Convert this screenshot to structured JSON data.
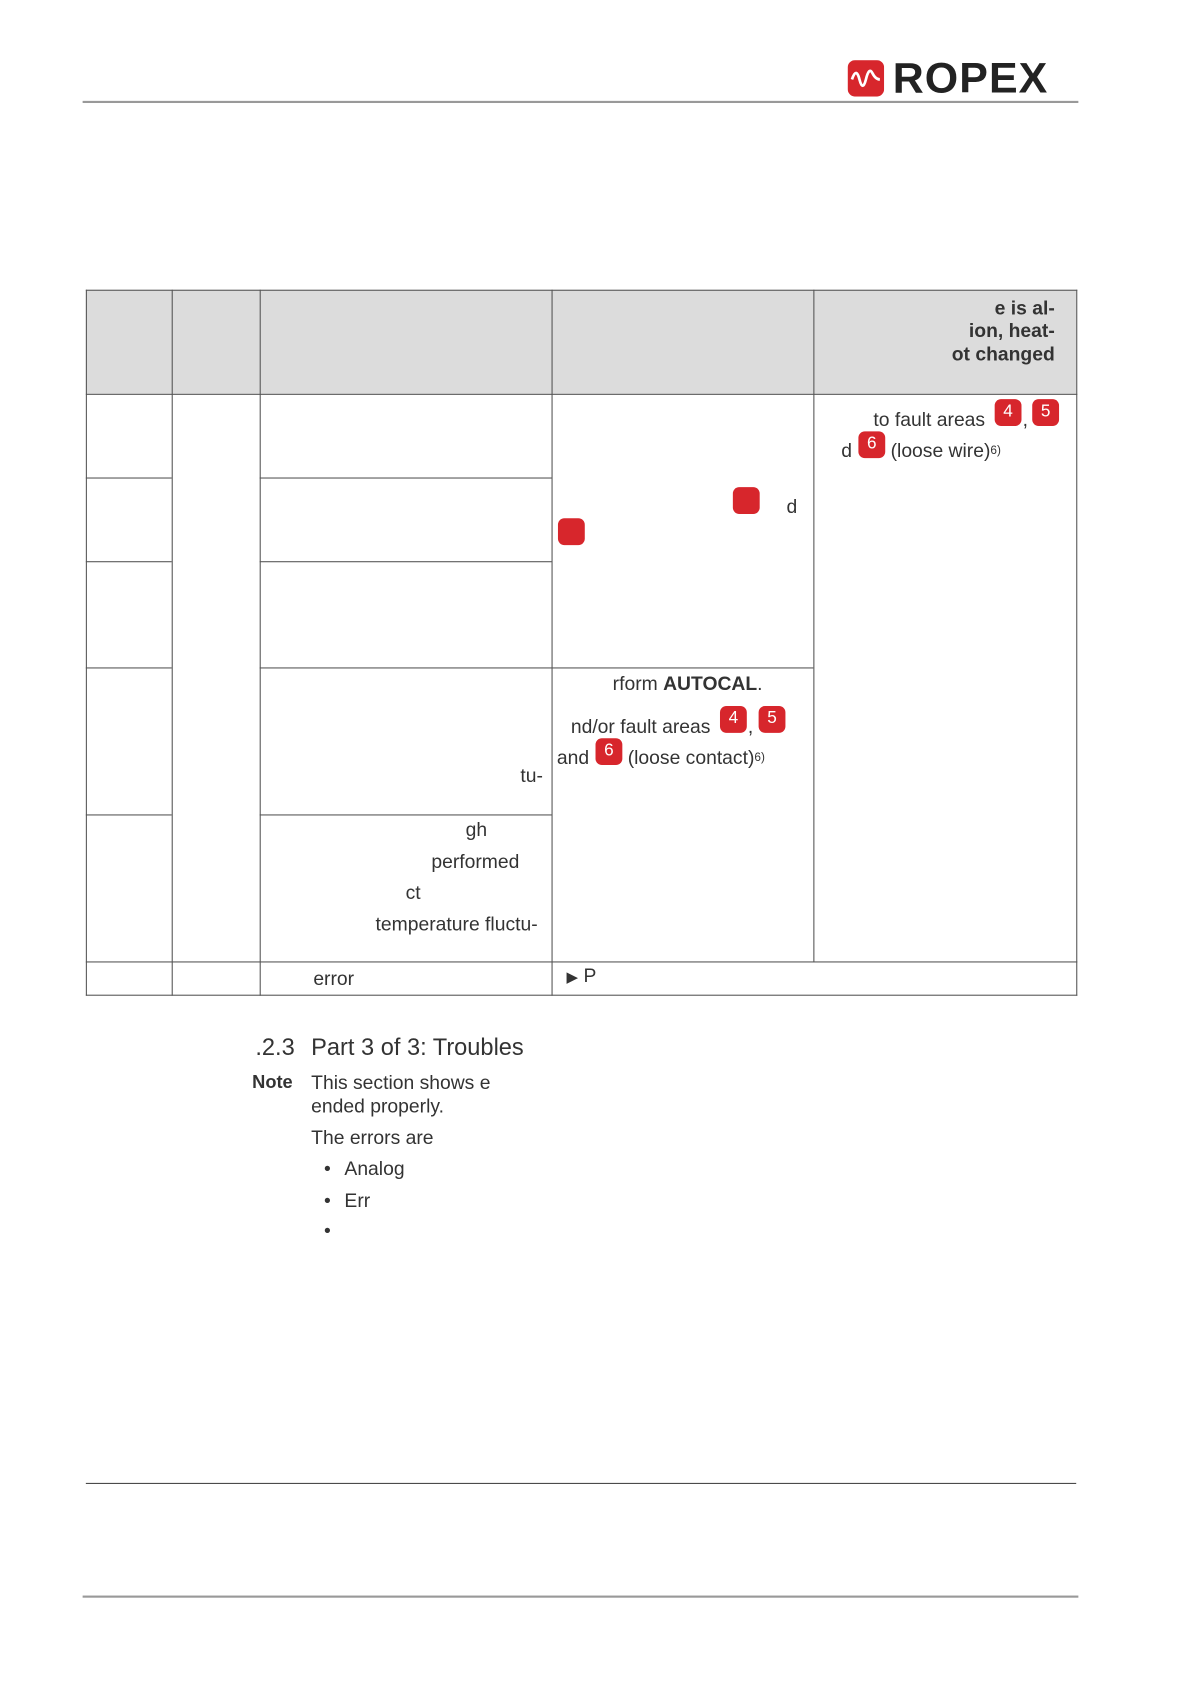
{
  "header": {
    "logo": "ROPEX"
  },
  "table": {
    "header": [
      "e is al-",
      "ion, heat-",
      "ot changed"
    ],
    "remedy": {
      "text": "to fault areas",
      "badge_a": "4",
      "sep": ",",
      "badge_b": "5",
      "prefix": "d",
      "badge_c": "6",
      "suffix": "(loose wire)",
      "footnote": "6)"
    },
    "action_top": {
      "tail": "d"
    },
    "action_bottom": {
      "line1": "rform ",
      "bold": "AUTOCAL",
      "period": ".",
      "line2": "nd/or fault areas",
      "badge_a": "4",
      "sep": ",",
      "badge_b": "5",
      "prefix": "and",
      "badge_c": "6",
      "suffix": "(loose contact)",
      "footnote": "6)"
    },
    "cause_row4": [
      "tu-"
    ],
    "cause_row5": [
      "gh",
      "performed",
      "ct",
      "temperature fluctu-"
    ],
    "last_row": {
      "cause": "error",
      "action": "P"
    }
  },
  "section": {
    "number": ".2.3",
    "title": "Part 3 of 3: Troubles",
    "note_label": "Note",
    "note": [
      "This section shows e",
      "ended properly."
    ],
    "intro": "The errors are",
    "items": [
      "Analog",
      "Err"
    ]
  }
}
